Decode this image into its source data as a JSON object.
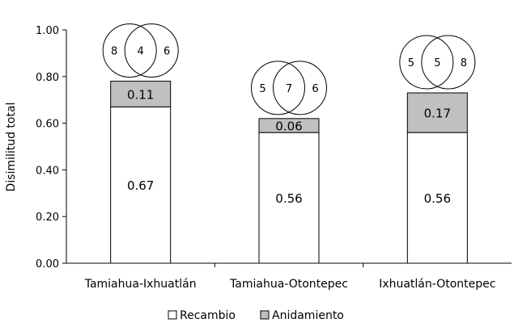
{
  "chart_data": {
    "type": "bar",
    "stacked": true,
    "ylabel": "Disimilitud total",
    "ylim": [
      0,
      1
    ],
    "yticks": [
      "0.00",
      "0.20",
      "0.40",
      "0.60",
      "0.80",
      "1.00"
    ],
    "categories": [
      "Tamiahua-Ixhuatlán",
      "Tamiahua-Otontepec",
      "Ixhuatlán-Otontepec"
    ],
    "series": [
      {
        "name": "Recambio",
        "values": [
          0.67,
          0.56,
          0.56
        ],
        "labels": [
          "0.67",
          "0.56",
          "0.56"
        ],
        "color": "#ffffff"
      },
      {
        "name": "Anidamiento",
        "values": [
          0.11,
          0.06,
          0.17
        ],
        "labels": [
          "0.11",
          "0.06",
          "0.17"
        ],
        "color": "#c0c0c0"
      }
    ],
    "venn": [
      {
        "left": "8",
        "shared": "4",
        "right": "6"
      },
      {
        "left": "5",
        "shared": "7",
        "right": "6"
      },
      {
        "left": "5",
        "shared": "5",
        "right": "8"
      }
    ],
    "legend_position": "bottom",
    "grid": false
  }
}
